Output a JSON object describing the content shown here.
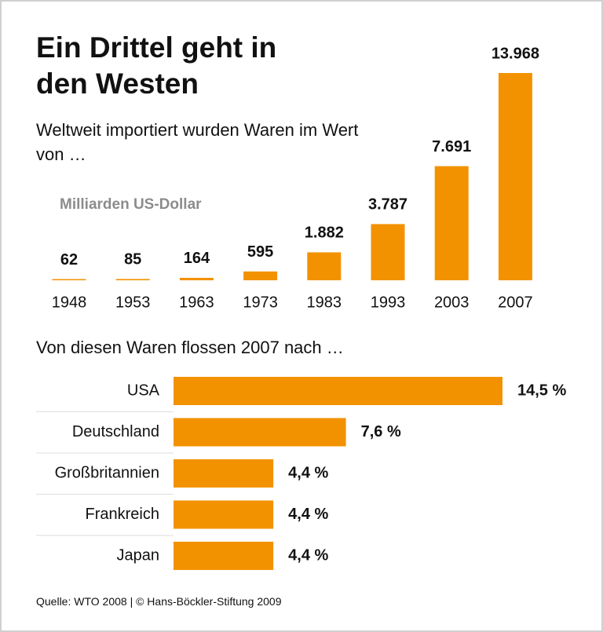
{
  "chart_data": [
    {
      "type": "bar",
      "title": "Ein Drittel geht in den Westen",
      "subtitle": "Weltweit importiert wurden Waren im Wert von …",
      "y_label": "Milliarden US-Dollar",
      "categories": [
        "1948",
        "1953",
        "1963",
        "1973",
        "1983",
        "1993",
        "2003",
        "2007"
      ],
      "values": [
        62,
        85,
        164,
        595,
        1882,
        3787,
        7691,
        13968
      ],
      "value_labels": [
        "62",
        "85",
        "164",
        "595",
        "1.882",
        "3.787",
        "7.691",
        "13.968"
      ],
      "color": "#f39200"
    },
    {
      "type": "barh",
      "title": "Von diesen Waren flossen 2007 nach …",
      "categories": [
        "USA",
        "Deutschland",
        "Großbritannien",
        "Frankreich",
        "Japan"
      ],
      "values": [
        14.5,
        7.6,
        4.4,
        4.4,
        4.4
      ],
      "value_labels": [
        "14,5 %",
        "7,6 %",
        "4,4 %",
        "4,4 %",
        "4,4 %"
      ],
      "color": "#f39200"
    }
  ],
  "source": "Quelle: WTO 2008 | © Hans-Böckler-Stiftung 2009"
}
